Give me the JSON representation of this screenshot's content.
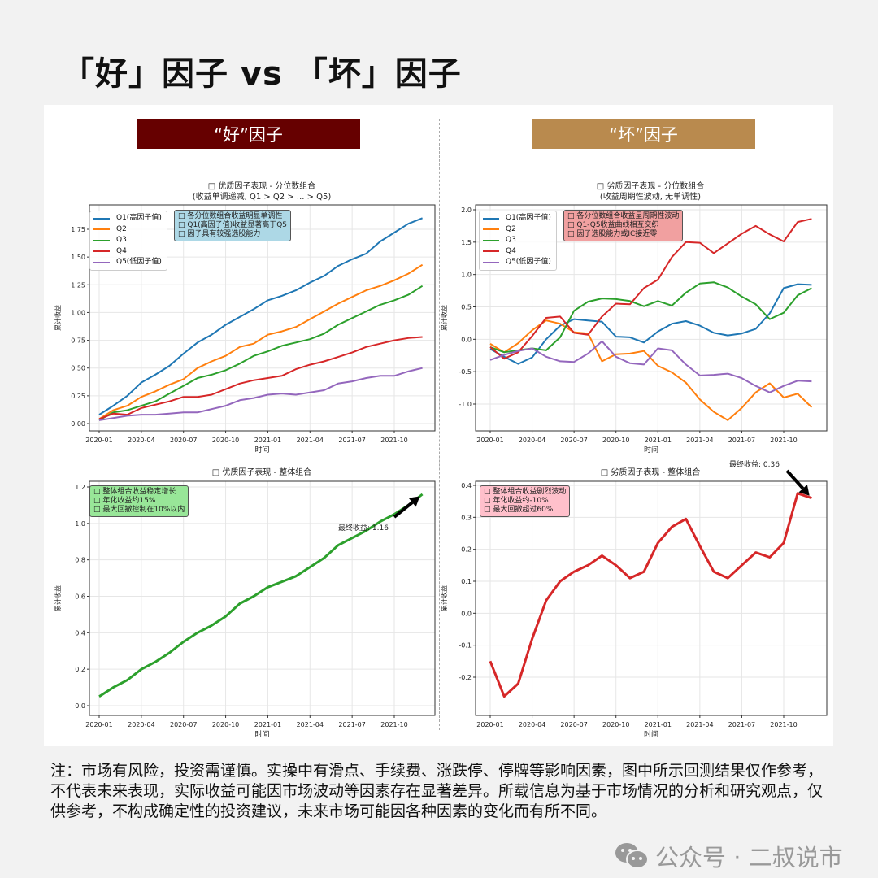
{
  "title": "「好」因子 vs 「坏」因子",
  "headers": {
    "good": "“好”因子",
    "bad": "“坏”因子",
    "good_color": "#660000",
    "bad_color": "#b98a4e"
  },
  "annotations": {
    "tl": [
      "□ 各分位数组合收益明显单调性",
      "□ Q1(高因子值)收益显著高于Q5",
      "□ 因子具有较强选股能力"
    ],
    "tr": [
      "□ 各分位数组合收益呈周期性波动",
      "□ Q1-Q5收益曲线相互交织",
      "□ 因子选股能力或IC接近零"
    ],
    "bl": [
      "□ 整体组合收益稳定增长",
      "□ 年化收益约15%",
      "□ 最大回撤控制在10%以内"
    ],
    "br": [
      "□ 整体组合收益剧烈波动",
      "□ 年化收益约-10%",
      "□ 最大回撤超过60%"
    ]
  },
  "chart_data": [
    {
      "type": "line",
      "title": "□ 优质因子表现 - 分位数组合",
      "subtitle": "(收益单调递减, Q1 > Q2 > ... > Q5)",
      "xlabel": "时间",
      "ylabel": "累计收益",
      "xticks": [
        "2020-01",
        "2020-04",
        "2020-07",
        "2020-10",
        "2021-01",
        "2021-04",
        "2021-07",
        "2021-10"
      ],
      "yticks": [
        "0.00",
        "0.25",
        "0.50",
        "0.75",
        "1.00",
        "1.25",
        "1.50",
        "1.75"
      ],
      "ylim": [
        0,
        1.75
      ],
      "grid": true,
      "legend": "top-left",
      "series": [
        {
          "name": "Q1(高因子值)",
          "color": "#1f77b4",
          "values": [
            0.08,
            0.16,
            0.25,
            0.37,
            0.44,
            0.52,
            0.63,
            0.73,
            0.8,
            0.89,
            0.96,
            1.03,
            1.11,
            1.15,
            1.2,
            1.27,
            1.33,
            1.42,
            1.48,
            1.53,
            1.64,
            1.72,
            1.8,
            1.85
          ]
        },
        {
          "name": "Q2",
          "color": "#ff7f0e",
          "values": [
            0.04,
            0.12,
            0.16,
            0.24,
            0.29,
            0.35,
            0.4,
            0.5,
            0.56,
            0.61,
            0.69,
            0.72,
            0.8,
            0.83,
            0.87,
            0.94,
            1.01,
            1.08,
            1.14,
            1.2,
            1.24,
            1.29,
            1.35,
            1.43
          ]
        },
        {
          "name": "Q3",
          "color": "#2ca02c",
          "values": [
            0.03,
            0.1,
            0.12,
            0.16,
            0.2,
            0.27,
            0.34,
            0.41,
            0.44,
            0.48,
            0.54,
            0.61,
            0.65,
            0.7,
            0.73,
            0.76,
            0.81,
            0.89,
            0.95,
            1.01,
            1.07,
            1.11,
            1.16,
            1.24
          ]
        },
        {
          "name": "Q4",
          "color": "#d62728",
          "values": [
            0.04,
            0.09,
            0.08,
            0.14,
            0.17,
            0.2,
            0.24,
            0.24,
            0.26,
            0.31,
            0.36,
            0.39,
            0.41,
            0.43,
            0.49,
            0.53,
            0.56,
            0.6,
            0.64,
            0.69,
            0.72,
            0.75,
            0.77,
            0.78
          ]
        },
        {
          "name": "Q5(低因子值)",
          "color": "#9467bd",
          "values": [
            0.03,
            0.05,
            0.07,
            0.08,
            0.08,
            0.09,
            0.1,
            0.1,
            0.13,
            0.16,
            0.21,
            0.23,
            0.26,
            0.27,
            0.26,
            0.28,
            0.3,
            0.36,
            0.38,
            0.41,
            0.43,
            0.43,
            0.47,
            0.5
          ]
        }
      ]
    },
    {
      "type": "line",
      "title": "□ 劣质因子表现 - 分位数组合",
      "subtitle": "(收益周期性波动, 无单调性)",
      "xlabel": "时间",
      "ylabel": "累计收益",
      "xticks": [
        "2020-01",
        "2020-04",
        "2020-07",
        "2020-10",
        "2021-01",
        "2021-04",
        "2021-07",
        "2021-10"
      ],
      "yticks": [
        "-1.0",
        "-0.5",
        "0.0",
        "0.5",
        "1.0",
        "1.5",
        "2.0"
      ],
      "ylim": [
        -1.0,
        2.0
      ],
      "grid": true,
      "legend": "top-left",
      "series": [
        {
          "name": "Q1(高因子值)",
          "color": "#1f77b4",
          "values": [
            -0.15,
            -0.27,
            -0.38,
            -0.28,
            0.0,
            0.21,
            0.31,
            0.29,
            0.27,
            0.04,
            0.03,
            -0.05,
            0.12,
            0.24,
            0.28,
            0.21,
            0.1,
            0.06,
            0.09,
            0.16,
            0.4,
            0.79,
            0.85,
            0.84
          ]
        },
        {
          "name": "Q2",
          "color": "#ff7f0e",
          "values": [
            -0.07,
            -0.2,
            -0.06,
            0.14,
            0.29,
            0.24,
            0.11,
            0.09,
            -0.34,
            -0.23,
            -0.22,
            -0.18,
            -0.41,
            -0.51,
            -0.67,
            -0.93,
            -1.12,
            -1.25,
            -1.06,
            -0.82,
            -0.68,
            -0.9,
            -0.84,
            -1.05
          ]
        },
        {
          "name": "Q3",
          "color": "#2ca02c",
          "values": [
            -0.12,
            -0.2,
            -0.17,
            -0.14,
            -0.17,
            0.03,
            0.44,
            0.58,
            0.63,
            0.62,
            0.59,
            0.51,
            0.59,
            0.52,
            0.72,
            0.86,
            0.88,
            0.8,
            0.66,
            0.54,
            0.31,
            0.41,
            0.68,
            0.79
          ]
        },
        {
          "name": "Q4",
          "color": "#d62728",
          "values": [
            -0.12,
            -0.3,
            -0.2,
            0.05,
            0.33,
            0.35,
            0.1,
            0.07,
            0.35,
            0.55,
            0.54,
            0.79,
            0.92,
            1.27,
            1.5,
            1.49,
            1.33,
            1.48,
            1.63,
            1.75,
            1.62,
            1.51,
            1.81,
            1.86
          ]
        },
        {
          "name": "Q5(低因子值)",
          "color": "#9467bd",
          "values": [
            -0.32,
            -0.24,
            -0.18,
            -0.14,
            -0.27,
            -0.34,
            -0.35,
            -0.22,
            -0.03,
            -0.27,
            -0.37,
            -0.39,
            -0.14,
            -0.17,
            -0.39,
            -0.56,
            -0.55,
            -0.53,
            -0.6,
            -0.72,
            -0.82,
            -0.72,
            -0.64,
            -0.65
          ]
        }
      ]
    },
    {
      "type": "line",
      "title": "□ 优质因子表现 - 整体组合",
      "xlabel": "时间",
      "ylabel": "累计收益",
      "xticks": [
        "2020-01",
        "2020-04",
        "2020-07",
        "2020-10",
        "2021-01",
        "2021-04",
        "2021-07",
        "2021-10"
      ],
      "yticks": [
        "0.0",
        "0.2",
        "0.4",
        "0.6",
        "0.8",
        "1.0",
        "1.2"
      ],
      "ylim": [
        0,
        1.2
      ],
      "grid": true,
      "annotation": "最终收益: 1.16",
      "series": [
        {
          "name": "整体组合",
          "color": "#2ca02c",
          "values": [
            0.05,
            0.1,
            0.14,
            0.2,
            0.24,
            0.29,
            0.35,
            0.4,
            0.44,
            0.49,
            0.56,
            0.6,
            0.65,
            0.68,
            0.71,
            0.76,
            0.81,
            0.88,
            0.92,
            0.96,
            1.01,
            1.05,
            1.1,
            1.16
          ]
        }
      ]
    },
    {
      "type": "line",
      "title": "□ 劣质因子表现 - 整体组合",
      "xlabel": "时间",
      "ylabel": "累计收益",
      "xticks": [
        "2020-01",
        "2020-04",
        "2020-07",
        "2020-10",
        "2021-01",
        "2021-04",
        "2021-07",
        "2021-10"
      ],
      "yticks": [
        "-0.2",
        "-0.1",
        "0.0",
        "0.1",
        "0.2",
        "0.3",
        "0.4"
      ],
      "ylim": [
        -0.2,
        0.4
      ],
      "grid": true,
      "annotation": "最终收益: 0.36",
      "series": [
        {
          "name": "整体组合",
          "color": "#d62728",
          "values": [
            -0.15,
            -0.26,
            -0.22,
            -0.08,
            0.04,
            0.1,
            0.13,
            0.15,
            0.18,
            0.15,
            0.11,
            0.13,
            0.22,
            0.27,
            0.295,
            0.21,
            0.13,
            0.11,
            0.15,
            0.19,
            0.175,
            0.22,
            0.375,
            0.36
          ]
        }
      ]
    }
  ],
  "footnote": "注：市场有风险，投资需谨慎。实操中有滑点、手续费、涨跌停、停牌等影响因素，图中所示回测结果仅作参考，不代表未来表现，实际收益可能因市场波动等因素存在显著差异。所载信息为基于市场情况的分析和研究观点，仅供参考，不构成确定性的投资建议，未来市场可能因各种因素的变化而有所不同。",
  "watermark": "公众号 · 二叔说市"
}
